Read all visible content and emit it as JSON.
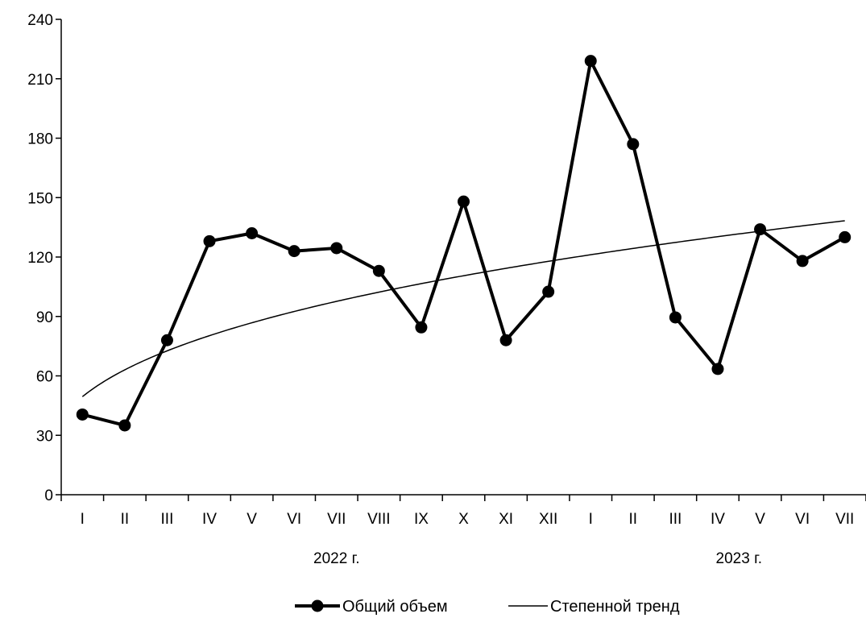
{
  "chart_data": {
    "type": "line",
    "title": "",
    "xlabel": "",
    "ylabel": "",
    "ylim": [
      0,
      240
    ],
    "yticks": [
      0,
      30,
      60,
      90,
      120,
      150,
      180,
      210,
      240
    ],
    "ytick_labels": [
      "0",
      "30",
      "60",
      "90",
      "120",
      "150",
      "180",
      "210",
      "240"
    ],
    "categories": [
      "I",
      "II",
      "III",
      "IV",
      "V",
      "VI",
      "VII",
      "VIII",
      "IX",
      "X",
      "XI",
      "XII",
      "I",
      "II",
      "III",
      "IV",
      "V",
      "VI",
      "VII"
    ],
    "year_labels": [
      {
        "text": "2022 г.",
        "center_index": 6
      },
      {
        "text": "2023 г.",
        "center_index": 15.5
      }
    ],
    "series": [
      {
        "name": "Общий объем",
        "color": "#000000",
        "marker": "circle",
        "values": [
          40.5,
          35,
          78,
          128,
          132,
          123,
          124.5,
          113,
          84.5,
          148,
          78,
          102.5,
          219,
          177,
          89.5,
          63.5,
          134,
          118,
          130
        ]
      },
      {
        "name": "Степенной тренд",
        "color": "#000000",
        "marker": "none",
        "trend": "power",
        "coefficient": 49.5,
        "exponent": 0.349
      }
    ],
    "legend_position": "bottom",
    "grid": false
  }
}
